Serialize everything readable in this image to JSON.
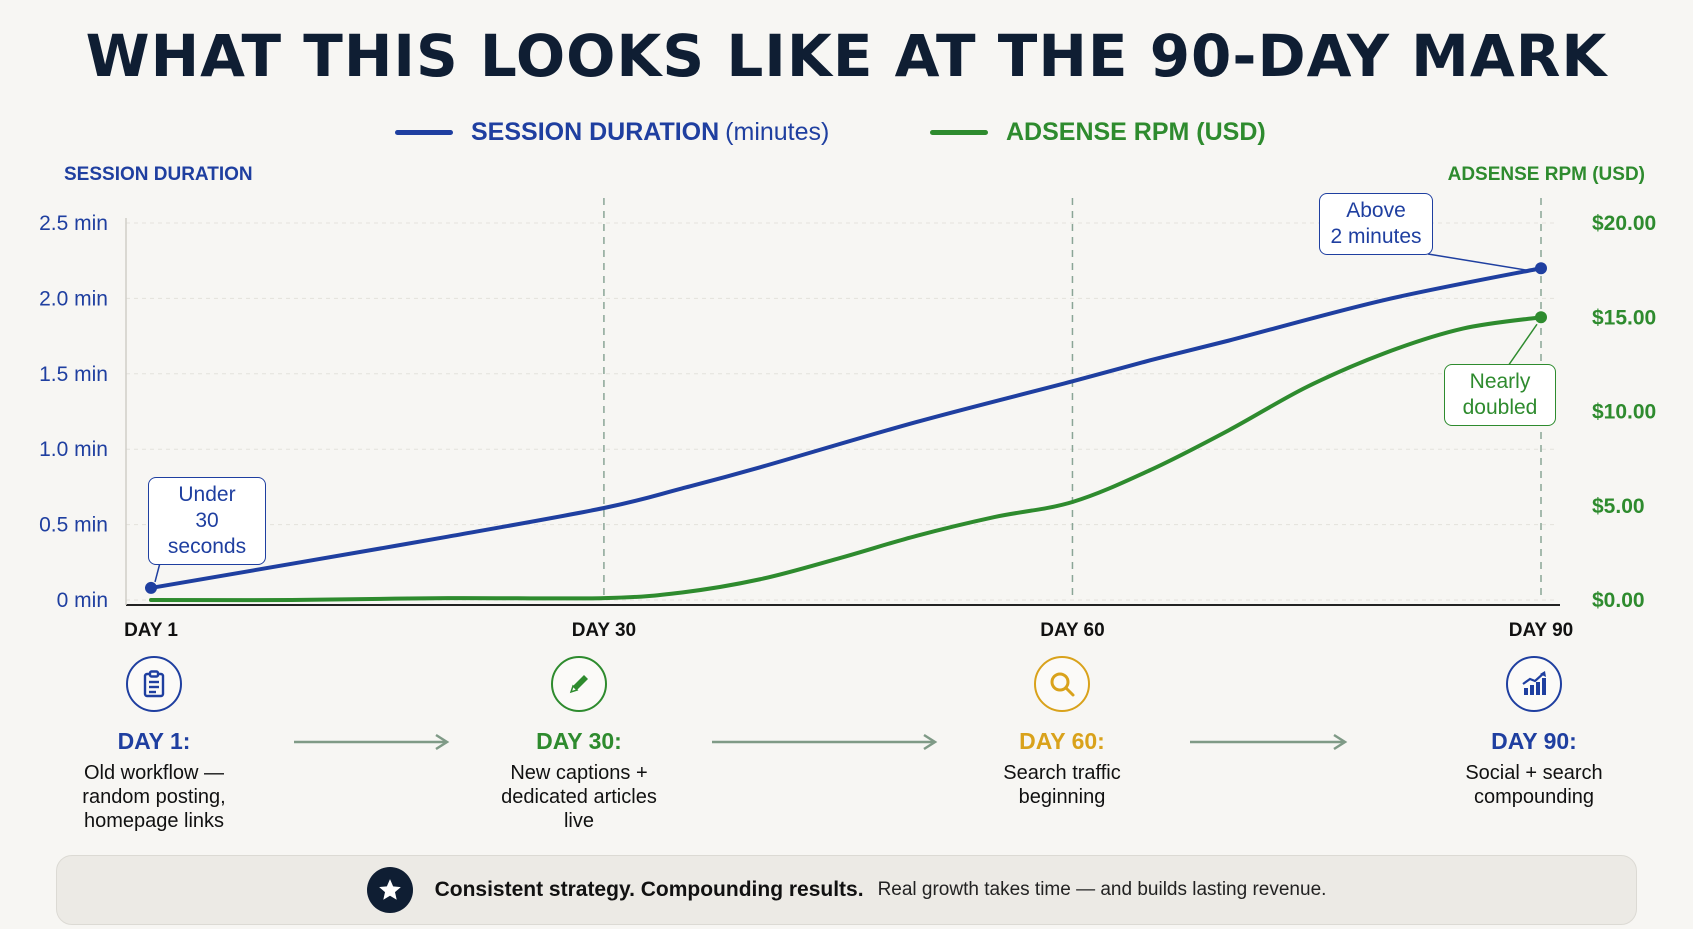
{
  "title": "WHAT THIS LOOKS LIKE AT THE 90-DAY MARK",
  "legend": {
    "session": {
      "label": "SESSION DURATION",
      "unit": "(minutes)",
      "color": "#1f3fa0"
    },
    "rpm": {
      "label": "ADSENSE RPM (USD)",
      "color": "#2e8b2e"
    }
  },
  "axis_titles": {
    "left": "SESSION DURATION",
    "right": "ADSENSE RPM (USD)"
  },
  "chart_data": {
    "type": "line",
    "x_ticks": [
      {
        "day": 1,
        "label": "DAY 1"
      },
      {
        "day": 30,
        "label": "DAY 30"
      },
      {
        "day": 60,
        "label": "DAY 60"
      },
      {
        "day": 90,
        "label": "DAY 90"
      }
    ],
    "xlim": [
      1,
      90
    ],
    "y_left": {
      "ylim": [
        0,
        2.5
      ],
      "ticks": [
        0,
        0.5,
        1.0,
        1.5,
        2.0,
        2.5
      ],
      "tick_labels": [
        "0 min",
        "0.5 min",
        "1.0 min",
        "1.5 min",
        "2.0 min",
        "2.5 min"
      ]
    },
    "y_right": {
      "ylim": [
        0,
        20
      ],
      "ticks": [
        0,
        5,
        10,
        15,
        20
      ],
      "tick_labels": [
        "$0.00",
        "$5.00",
        "$10.00",
        "$15.00",
        "$20.00"
      ]
    },
    "grid": true,
    "series": [
      {
        "name": "SESSION DURATION",
        "axis": "left",
        "color": "#1f3fa0",
        "x": [
          1,
          10,
          20,
          30,
          35,
          40,
          50,
          60,
          65,
          70,
          80,
          90
        ],
        "y": [
          0.08,
          0.24,
          0.42,
          0.61,
          0.74,
          0.88,
          1.18,
          1.45,
          1.59,
          1.72,
          1.99,
          2.2
        ]
      },
      {
        "name": "ADSENSE RPM (USD)",
        "axis": "right",
        "color": "#2e8b2e",
        "x": [
          1,
          10,
          20,
          30,
          35,
          40,
          45,
          50,
          55,
          60,
          65,
          70,
          75,
          80,
          85,
          90
        ],
        "y": [
          0.0,
          0.0,
          0.1,
          0.1,
          0.4,
          1.1,
          2.2,
          3.4,
          4.4,
          5.2,
          6.9,
          9.0,
          11.3,
          13.1,
          14.4,
          15.0
        ]
      }
    ],
    "annotations": [
      {
        "text": [
          "Under",
          "30 seconds"
        ],
        "series": "SESSION DURATION",
        "day": 1
      },
      {
        "text": [
          "Above",
          "2 minutes"
        ],
        "series": "SESSION DURATION",
        "day": 90
      },
      {
        "text": [
          "Nearly",
          "doubled"
        ],
        "series": "ADSENSE RPM (USD)",
        "day": 90
      }
    ]
  },
  "milestones": [
    {
      "heading": "DAY 1:",
      "lines": [
        "Old workflow —",
        "random posting,",
        "homepage links"
      ],
      "icon": "clipboard-icon",
      "color": "#1f3fa0"
    },
    {
      "heading": "DAY 30:",
      "lines": [
        "New captions +",
        "dedicated articles",
        "live"
      ],
      "icon": "pencil-icon",
      "color": "#2e8b2e"
    },
    {
      "heading": "DAY 60:",
      "lines": [
        "Search traffic",
        "beginning"
      ],
      "icon": "magnifier-icon",
      "color": "#d9a21b"
    },
    {
      "heading": "DAY 90:",
      "lines": [
        "Social + search",
        "compounding"
      ],
      "icon": "growth-chart-icon",
      "color": "#1f3fa0"
    }
  ],
  "banner": {
    "strong": "Consistent strategy. Compounding results.",
    "text": "Real growth takes time — and builds lasting revenue.",
    "icon": "star-icon"
  }
}
